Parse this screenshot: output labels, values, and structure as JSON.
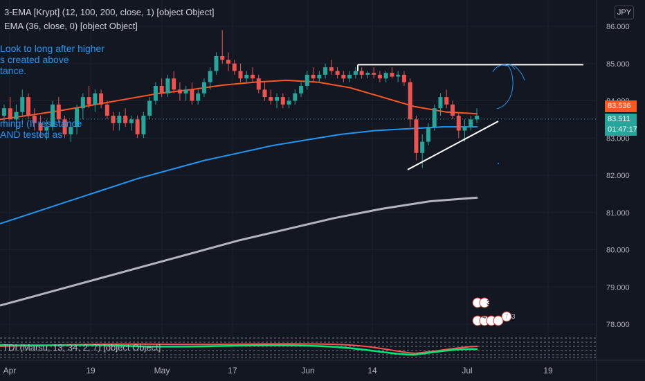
{
  "header": {
    "indicator1": "3-EMA [Krypt] (12, 100, 200, close, 1) [object Object]",
    "indicator2": "EMA (36, close, 0) [object Object]",
    "currency": "JPY"
  },
  "annotations": {
    "note_top": "Look to long after higher\ns created above\ntance.",
    "note_bottom": "ming! (If resistance\nAND tested as"
  },
  "tdi": {
    "label": "TDI (Marsu, 13, 34, 2, 7) [object Object]"
  },
  "price_tags": {
    "ema36": "83.536",
    "last": "83.511",
    "countdown": "01:47:17"
  },
  "colors": {
    "background": "#131722",
    "up": "#26a69a",
    "down": "#ef5350",
    "ema12": "#2196f3",
    "ema36": "#ff5722",
    "ema200": "#b2b5be",
    "annotation": "#2196f3",
    "drawing": "#ffffff"
  },
  "chart_data": {
    "type": "candlestick",
    "currency": "JPY",
    "ylim": [
      77.6,
      86.6
    ],
    "y_ticks": [
      "86.000",
      "85.000",
      "84.000",
      "83.000",
      "82.000",
      "81.000",
      "80.000",
      "79.000",
      "78.000"
    ],
    "x_ticks": [
      "Apr",
      "19",
      "May",
      "17",
      "Jun",
      "14",
      "Jul",
      "19"
    ],
    "candles": [
      [
        83.6,
        83.9,
        83.3,
        83.8
      ],
      [
        83.8,
        84.1,
        83.5,
        83.5
      ],
      [
        83.5,
        83.9,
        83.2,
        83.7
      ],
      [
        83.7,
        84.3,
        83.6,
        84.1
      ],
      [
        84.1,
        84.2,
        83.5,
        83.6
      ],
      [
        83.6,
        83.8,
        83.2,
        83.4
      ],
      [
        83.4,
        83.6,
        83.0,
        83.2
      ],
      [
        83.2,
        83.5,
        82.95,
        83.3
      ],
      [
        83.3,
        84.0,
        83.2,
        83.9
      ],
      [
        83.9,
        84.1,
        83.4,
        83.5
      ],
      [
        83.5,
        83.6,
        83.0,
        83.1
      ],
      [
        83.1,
        83.4,
        82.9,
        83.3
      ],
      [
        83.3,
        83.9,
        83.1,
        83.8
      ],
      [
        83.8,
        84.2,
        83.5,
        84.1
      ],
      [
        84.1,
        84.4,
        83.8,
        83.9
      ],
      [
        83.9,
        84.3,
        83.7,
        84.2
      ],
      [
        84.2,
        84.3,
        83.8,
        83.9
      ],
      [
        83.9,
        84.0,
        83.5,
        83.6
      ],
      [
        83.6,
        83.7,
        83.2,
        83.4
      ],
      [
        83.4,
        83.7,
        83.2,
        83.6
      ],
      [
        83.6,
        83.8,
        83.3,
        83.4
      ],
      [
        83.4,
        83.6,
        83.2,
        83.5
      ],
      [
        83.5,
        83.6,
        83.0,
        83.1
      ],
      [
        83.1,
        83.7,
        83.0,
        83.6
      ],
      [
        83.6,
        84.1,
        83.5,
        84.0
      ],
      [
        84.0,
        84.5,
        83.9,
        84.4
      ],
      [
        84.4,
        84.6,
        84.1,
        84.2
      ],
      [
        84.2,
        84.7,
        84.1,
        84.6
      ],
      [
        84.6,
        84.8,
        84.2,
        84.3
      ],
      [
        84.3,
        84.5,
        84.0,
        84.2
      ],
      [
        84.2,
        84.4,
        84.0,
        84.3
      ],
      [
        84.3,
        84.5,
        83.9,
        84.0
      ],
      [
        84.0,
        84.3,
        83.9,
        84.2
      ],
      [
        84.2,
        84.6,
        84.1,
        84.5
      ],
      [
        84.5,
        84.9,
        84.3,
        84.8
      ],
      [
        84.8,
        85.3,
        84.7,
        85.2
      ],
      [
        85.2,
        85.9,
        85.0,
        85.1
      ],
      [
        85.1,
        85.3,
        84.8,
        85.0
      ],
      [
        85.0,
        85.1,
        84.7,
        84.8
      ],
      [
        84.8,
        85.0,
        84.5,
        84.6
      ],
      [
        84.6,
        84.8,
        84.5,
        84.7
      ],
      [
        84.7,
        84.9,
        84.5,
        84.6
      ],
      [
        84.6,
        84.7,
        84.2,
        84.3
      ],
      [
        84.3,
        84.5,
        84.0,
        84.1
      ],
      [
        84.1,
        84.3,
        83.9,
        84.0
      ],
      [
        84.0,
        84.2,
        83.8,
        84.1
      ],
      [
        84.1,
        84.2,
        83.8,
        83.9
      ],
      [
        83.9,
        84.1,
        83.8,
        84.0
      ],
      [
        84.0,
        84.3,
        83.9,
        84.2
      ],
      [
        84.2,
        84.5,
        84.1,
        84.4
      ],
      [
        84.4,
        84.8,
        84.3,
        84.7
      ],
      [
        84.7,
        84.9,
        84.5,
        84.6
      ],
      [
        84.6,
        84.8,
        84.5,
        84.7
      ],
      [
        84.7,
        85.0,
        84.6,
        84.9
      ],
      [
        84.9,
        85.1,
        84.7,
        84.8
      ],
      [
        84.8,
        84.9,
        84.6,
        84.7
      ],
      [
        84.7,
        84.8,
        84.5,
        84.6
      ],
      [
        84.6,
        84.8,
        84.5,
        84.7
      ],
      [
        84.7,
        84.9,
        84.6,
        84.8
      ],
      [
        84.8,
        84.9,
        84.6,
        84.7
      ],
      [
        84.7,
        84.8,
        84.6,
        84.75
      ],
      [
        84.75,
        84.9,
        84.6,
        84.7
      ],
      [
        84.7,
        84.8,
        84.5,
        84.6
      ],
      [
        84.6,
        84.8,
        84.5,
        84.75
      ],
      [
        84.75,
        84.9,
        84.6,
        84.65
      ],
      [
        84.65,
        84.8,
        84.5,
        84.7
      ],
      [
        84.7,
        84.8,
        84.4,
        84.5
      ],
      [
        84.5,
        84.6,
        83.3,
        83.5
      ],
      [
        83.5,
        83.6,
        82.4,
        82.6
      ],
      [
        82.6,
        83.1,
        82.2,
        82.9
      ],
      [
        82.9,
        83.4,
        82.8,
        83.3
      ],
      [
        83.3,
        83.9,
        83.2,
        83.8
      ],
      [
        83.8,
        84.2,
        83.6,
        84.1
      ],
      [
        84.1,
        84.3,
        83.8,
        83.9
      ],
      [
        83.9,
        84.0,
        83.5,
        83.6
      ],
      [
        83.6,
        83.7,
        83.0,
        83.2
      ],
      [
        83.2,
        83.5,
        82.9,
        83.3
      ],
      [
        83.3,
        83.6,
        83.2,
        83.5
      ],
      [
        83.5,
        83.8,
        83.4,
        83.6
      ]
    ],
    "series": [
      {
        "name": "EMA 36",
        "values": [
          83.5,
          83.62,
          83.75,
          83.9,
          84.05,
          84.2,
          84.3,
          84.42,
          84.5,
          84.55,
          84.5,
          84.35,
          84.1,
          83.85,
          83.7,
          83.65
        ]
      },
      {
        "name": "EMA 100",
        "values": [
          80.7,
          81.0,
          81.3,
          81.6,
          81.9,
          82.15,
          82.4,
          82.6,
          82.8,
          82.95,
          83.1,
          83.2,
          83.25,
          83.3,
          83.3
        ]
      },
      {
        "name": "EMA 200",
        "values": [
          78.5,
          78.85,
          79.2,
          79.55,
          79.9,
          80.25,
          80.55,
          80.85,
          81.1,
          81.3,
          81.4
        ]
      }
    ]
  }
}
